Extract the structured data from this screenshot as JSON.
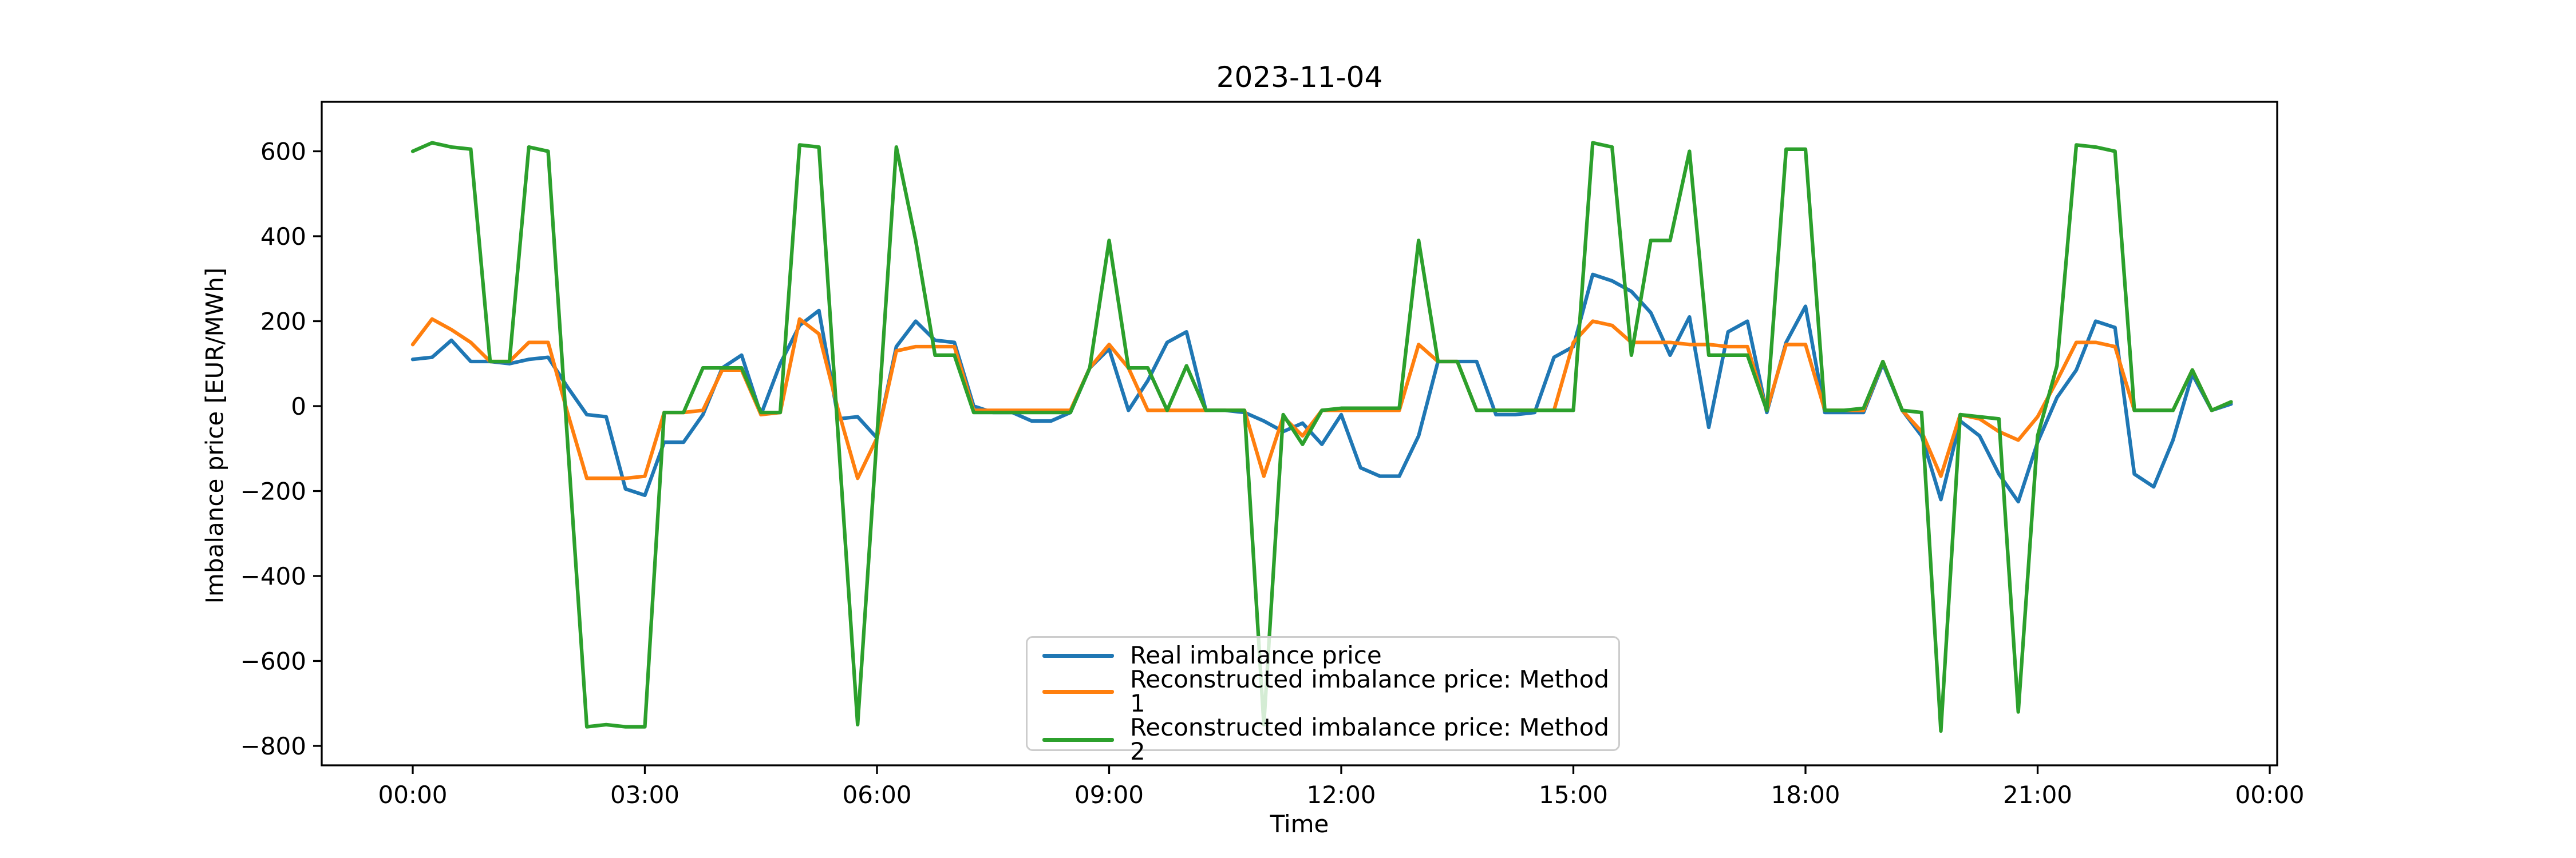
{
  "chart_data": {
    "type": "line",
    "title": "2023-11-04",
    "xlabel": "Time",
    "ylabel": "Imbalance price [EUR/MWh]",
    "grid": false,
    "legend_position": "lower center-right inside plot",
    "ylim": [
      -849,
      716
    ],
    "x_ticks": {
      "hours": [
        0,
        3,
        6,
        9,
        12,
        15,
        18,
        21,
        24
      ],
      "labels": [
        "00:00",
        "03:00",
        "06:00",
        "09:00",
        "12:00",
        "15:00",
        "18:00",
        "21:00",
        "00:00"
      ]
    },
    "y_ticks": {
      "values": [
        600,
        400,
        200,
        0,
        -200,
        -400,
        -600,
        -800
      ],
      "labels": [
        "600",
        "400",
        "200",
        "0",
        "−200",
        "−400",
        "−600",
        "−800"
      ]
    },
    "x": [
      "00:00",
      "00:15",
      "00:30",
      "00:45",
      "01:00",
      "01:15",
      "01:30",
      "01:45",
      "02:00",
      "02:15",
      "02:30",
      "02:45",
      "03:00",
      "03:15",
      "03:30",
      "03:45",
      "04:00",
      "04:15",
      "04:30",
      "04:45",
      "05:00",
      "05:15",
      "05:30",
      "05:45",
      "06:00",
      "06:15",
      "06:30",
      "06:45",
      "07:00",
      "07:15",
      "07:30",
      "07:45",
      "08:00",
      "08:15",
      "08:30",
      "08:45",
      "09:00",
      "09:15",
      "09:30",
      "09:45",
      "10:00",
      "10:15",
      "10:30",
      "10:45",
      "11:00",
      "11:15",
      "11:30",
      "11:45",
      "12:00",
      "12:15",
      "12:30",
      "12:45",
      "13:00",
      "13:15",
      "13:30",
      "13:45",
      "14:00",
      "14:15",
      "14:30",
      "14:45",
      "15:00",
      "15:15",
      "15:30",
      "15:45",
      "16:00",
      "16:15",
      "16:30",
      "16:45",
      "17:00",
      "17:15",
      "17:30",
      "17:45",
      "18:00",
      "18:15",
      "18:30",
      "18:45",
      "19:00",
      "19:15",
      "19:30",
      "19:45",
      "20:00",
      "20:15",
      "20:30",
      "20:45",
      "21:00",
      "21:15",
      "21:30",
      "21:45",
      "22:00",
      "22:15",
      "22:30",
      "22:45",
      "23:00",
      "23:15",
      "23:30"
    ],
    "series": [
      {
        "name": "Real imbalance price",
        "color": "#1f77b4",
        "values": [
          110,
          115,
          155,
          105,
          105,
          100,
          110,
          115,
          45,
          -20,
          -25,
          -195,
          -210,
          -85,
          -85,
          -20,
          90,
          120,
          -20,
          100,
          190,
          225,
          -30,
          -25,
          -75,
          140,
          200,
          155,
          150,
          0,
          -15,
          -15,
          -35,
          -35,
          -15,
          90,
          135,
          -10,
          60,
          150,
          175,
          -10,
          -10,
          -15,
          -35,
          -60,
          -40,
          -90,
          -20,
          -145,
          -165,
          -165,
          -70,
          105,
          105,
          105,
          -20,
          -20,
          -15,
          115,
          140,
          310,
          295,
          270,
          220,
          120,
          210,
          -50,
          175,
          200,
          -15,
          150,
          235,
          -15,
          -15,
          -15,
          100,
          -10,
          -70,
          -220,
          -35,
          -70,
          -160,
          -225,
          -85,
          20,
          85,
          200,
          185,
          -160,
          -190,
          -80,
          75,
          -10,
          5
        ]
      },
      {
        "name": "Reconstructed imbalance price: Method 1",
        "color": "#ff7f0e",
        "values": [
          145,
          205,
          180,
          150,
          105,
          105,
          150,
          150,
          -15,
          -170,
          -170,
          -170,
          -165,
          -15,
          -15,
          -10,
          85,
          85,
          -20,
          -15,
          205,
          170,
          -10,
          -170,
          -75,
          130,
          140,
          140,
          140,
          -10,
          -10,
          -10,
          -10,
          -10,
          -10,
          90,
          145,
          90,
          -10,
          -10,
          -10,
          -10,
          -10,
          -10,
          -165,
          -25,
          -70,
          -10,
          -10,
          -10,
          -10,
          -10,
          145,
          105,
          105,
          -10,
          -10,
          -10,
          -10,
          -10,
          150,
          200,
          190,
          150,
          150,
          150,
          145,
          145,
          140,
          140,
          -10,
          145,
          145,
          -10,
          -10,
          -10,
          105,
          -10,
          -60,
          -165,
          -20,
          -30,
          -60,
          -80,
          -25,
          60,
          150,
          150,
          140,
          -10,
          -10,
          -10,
          85,
          -10,
          10
        ]
      },
      {
        "name": "Reconstructed imbalance price: Method 2",
        "color": "#2ca02c",
        "values": [
          600,
          620,
          610,
          605,
          105,
          105,
          610,
          600,
          -80,
          -755,
          -750,
          -755,
          -755,
          -15,
          -15,
          90,
          90,
          90,
          -15,
          -15,
          615,
          610,
          -75,
          -750,
          -70,
          610,
          390,
          120,
          120,
          -15,
          -15,
          -15,
          -15,
          -15,
          -15,
          90,
          390,
          90,
          90,
          -10,
          95,
          -10,
          -10,
          -10,
          -750,
          -20,
          -90,
          -10,
          -5,
          -5,
          -5,
          -5,
          390,
          105,
          105,
          -10,
          -10,
          -10,
          -10,
          -10,
          -10,
          620,
          610,
          120,
          390,
          390,
          600,
          120,
          120,
          120,
          -10,
          605,
          605,
          -10,
          -10,
          -5,
          105,
          -10,
          -15,
          -765,
          -20,
          -25,
          -30,
          -720,
          -70,
          95,
          615,
          610,
          600,
          -10,
          -10,
          -10,
          85,
          -10,
          10
        ]
      }
    ]
  }
}
